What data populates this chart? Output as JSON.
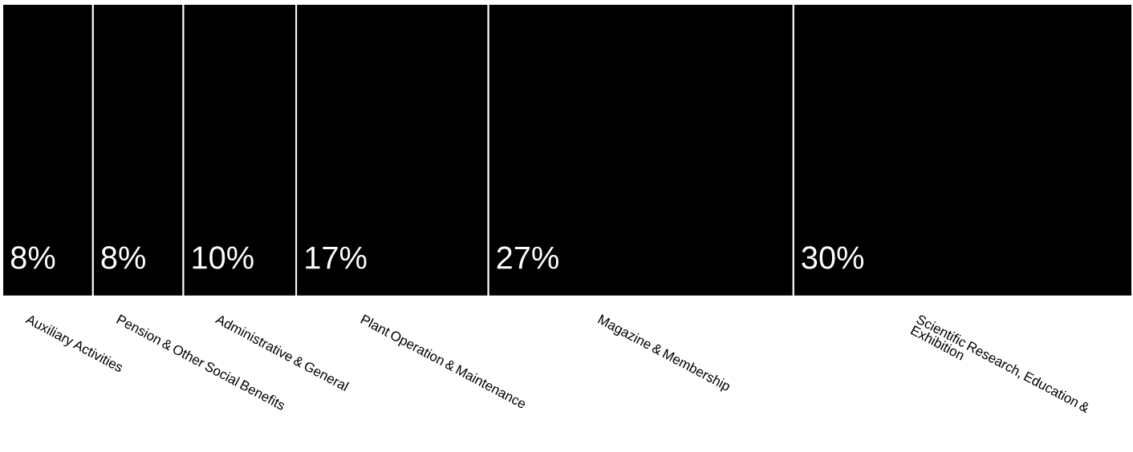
{
  "chart_data": {
    "type": "bar",
    "orientation": "horizontal",
    "stacked": true,
    "categories": [
      null
    ],
    "series": [
      {
        "name": "Auxiliary Activities",
        "color": "#000000",
        "values": [
          8
        ],
        "value_labels": [
          "8%"
        ]
      },
      {
        "name": "Pension & Other Social Benefits",
        "color": "#000000",
        "values": [
          8
        ],
        "value_labels": [
          "8%"
        ]
      },
      {
        "name": "Administrative & General",
        "color": "#000000",
        "values": [
          10
        ],
        "value_labels": [
          "10%"
        ]
      },
      {
        "name": "Plant Operation & Maintenance",
        "color": "#000000",
        "values": [
          17
        ],
        "value_labels": [
          "17%"
        ]
      },
      {
        "name": "Magazine & Membership",
        "color": "#000000",
        "values": [
          27
        ],
        "value_labels": [
          "27%"
        ]
      },
      {
        "name": "Scientific Research, Education & Exhibition",
        "color": "#000000",
        "values": [
          30
        ],
        "value_labels": [
          "30%"
        ]
      }
    ]
  }
}
